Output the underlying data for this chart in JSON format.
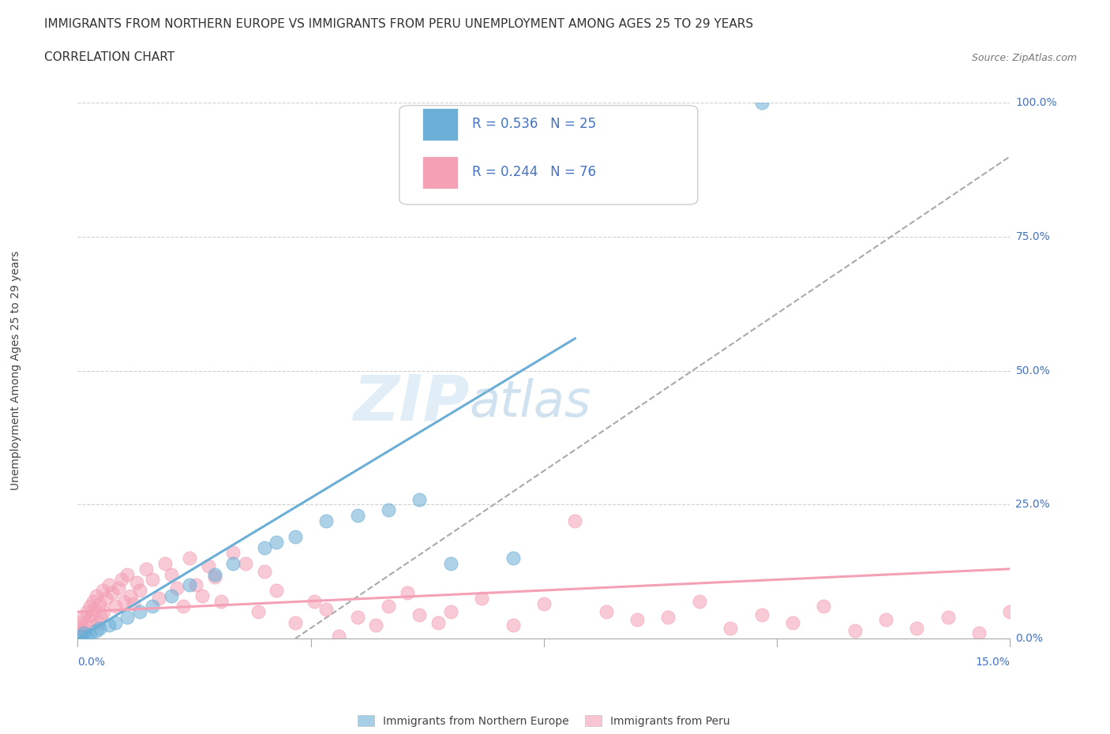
{
  "title_line1": "IMMIGRANTS FROM NORTHERN EUROPE VS IMMIGRANTS FROM PERU UNEMPLOYMENT AMONG AGES 25 TO 29 YEARS",
  "title_line2": "CORRELATION CHART",
  "source": "Source: ZipAtlas.com",
  "ylabel": "Unemployment Among Ages 25 to 29 years",
  "xlabel_bottom_left": "0.0%",
  "xlabel_bottom_right": "15.0%",
  "xlim": [
    0.0,
    15.0
  ],
  "ylim": [
    0.0,
    100.0
  ],
  "yticks": [
    0.0,
    25.0,
    50.0,
    75.0,
    100.0
  ],
  "ytick_labels": [
    "0.0%",
    "25.0%",
    "50.0%",
    "75.0%",
    "100.0%"
  ],
  "blue_label": "Immigrants from Northern Europe",
  "pink_label": "Immigrants from Peru",
  "blue_color": "#6baed6",
  "pink_color": "#f4a0b5",
  "blue_R": "0.536",
  "blue_N": "25",
  "pink_R": "0.244",
  "pink_N": "76",
  "blue_scatter_x": [
    0.05,
    0.1,
    0.15,
    0.2,
    0.3,
    0.35,
    0.5,
    0.6,
    0.8,
    1.0,
    1.2,
    1.5,
    1.8,
    2.2,
    2.5,
    3.0,
    3.2,
    3.5,
    4.0,
    4.5,
    5.0,
    5.5,
    6.0,
    7.0,
    11.0
  ],
  "blue_scatter_y": [
    0.5,
    1.0,
    0.3,
    0.8,
    1.5,
    2.0,
    2.5,
    3.0,
    4.0,
    5.0,
    6.0,
    8.0,
    10.0,
    12.0,
    14.0,
    17.0,
    18.0,
    19.0,
    22.0,
    23.0,
    24.0,
    26.0,
    14.0,
    15.0,
    100.0
  ],
  "pink_scatter_x": [
    0.02,
    0.05,
    0.08,
    0.1,
    0.12,
    0.15,
    0.18,
    0.2,
    0.22,
    0.25,
    0.28,
    0.3,
    0.32,
    0.35,
    0.38,
    0.4,
    0.42,
    0.45,
    0.5,
    0.55,
    0.6,
    0.65,
    0.7,
    0.75,
    0.8,
    0.85,
    0.9,
    0.95,
    1.0,
    1.1,
    1.2,
    1.3,
    1.4,
    1.5,
    1.6,
    1.7,
    1.8,
    1.9,
    2.0,
    2.1,
    2.2,
    2.3,
    2.5,
    2.7,
    2.9,
    3.0,
    3.2,
    3.5,
    3.8,
    4.0,
    4.2,
    4.5,
    4.8,
    5.0,
    5.3,
    5.5,
    5.8,
    6.0,
    6.5,
    7.0,
    7.5,
    8.0,
    8.5,
    9.0,
    9.5,
    10.0,
    10.5,
    11.0,
    11.5,
    12.0,
    12.5,
    13.0,
    13.5,
    14.0,
    14.5,
    15.0
  ],
  "pink_scatter_y": [
    2.0,
    3.0,
    1.5,
    4.0,
    2.5,
    5.0,
    3.5,
    6.0,
    4.5,
    7.0,
    5.5,
    8.0,
    3.0,
    6.5,
    4.0,
    9.0,
    5.0,
    7.5,
    10.0,
    8.5,
    6.0,
    9.5,
    11.0,
    7.0,
    12.0,
    8.0,
    6.5,
    10.5,
    9.0,
    13.0,
    11.0,
    7.5,
    14.0,
    12.0,
    9.5,
    6.0,
    15.0,
    10.0,
    8.0,
    13.5,
    11.5,
    7.0,
    16.0,
    14.0,
    5.0,
    12.5,
    9.0,
    3.0,
    7.0,
    5.5,
    0.5,
    4.0,
    2.5,
    6.0,
    8.5,
    4.5,
    3.0,
    5.0,
    7.5,
    2.5,
    6.5,
    22.0,
    5.0,
    3.5,
    4.0,
    7.0,
    2.0,
    4.5,
    3.0,
    6.0,
    1.5,
    3.5,
    2.0,
    4.0,
    1.0,
    5.0
  ],
  "blue_trend_x0": 0.0,
  "blue_trend_y0": 0.0,
  "blue_trend_x1": 8.0,
  "blue_trend_y1": 56.0,
  "pink_trend_x0": 0.0,
  "pink_trend_y0": 5.0,
  "pink_trend_x1": 15.0,
  "pink_trend_y1": 13.0,
  "gray_dash_x0": 3.5,
  "gray_dash_y0": 0.0,
  "gray_dash_x1": 15.0,
  "gray_dash_y1": 90.0,
  "watermark": "ZIPatlas",
  "background_color": "#ffffff",
  "grid_color": "#d0d0d0",
  "tick_color": "#4472c4",
  "legend_text_color": "#4472c4"
}
